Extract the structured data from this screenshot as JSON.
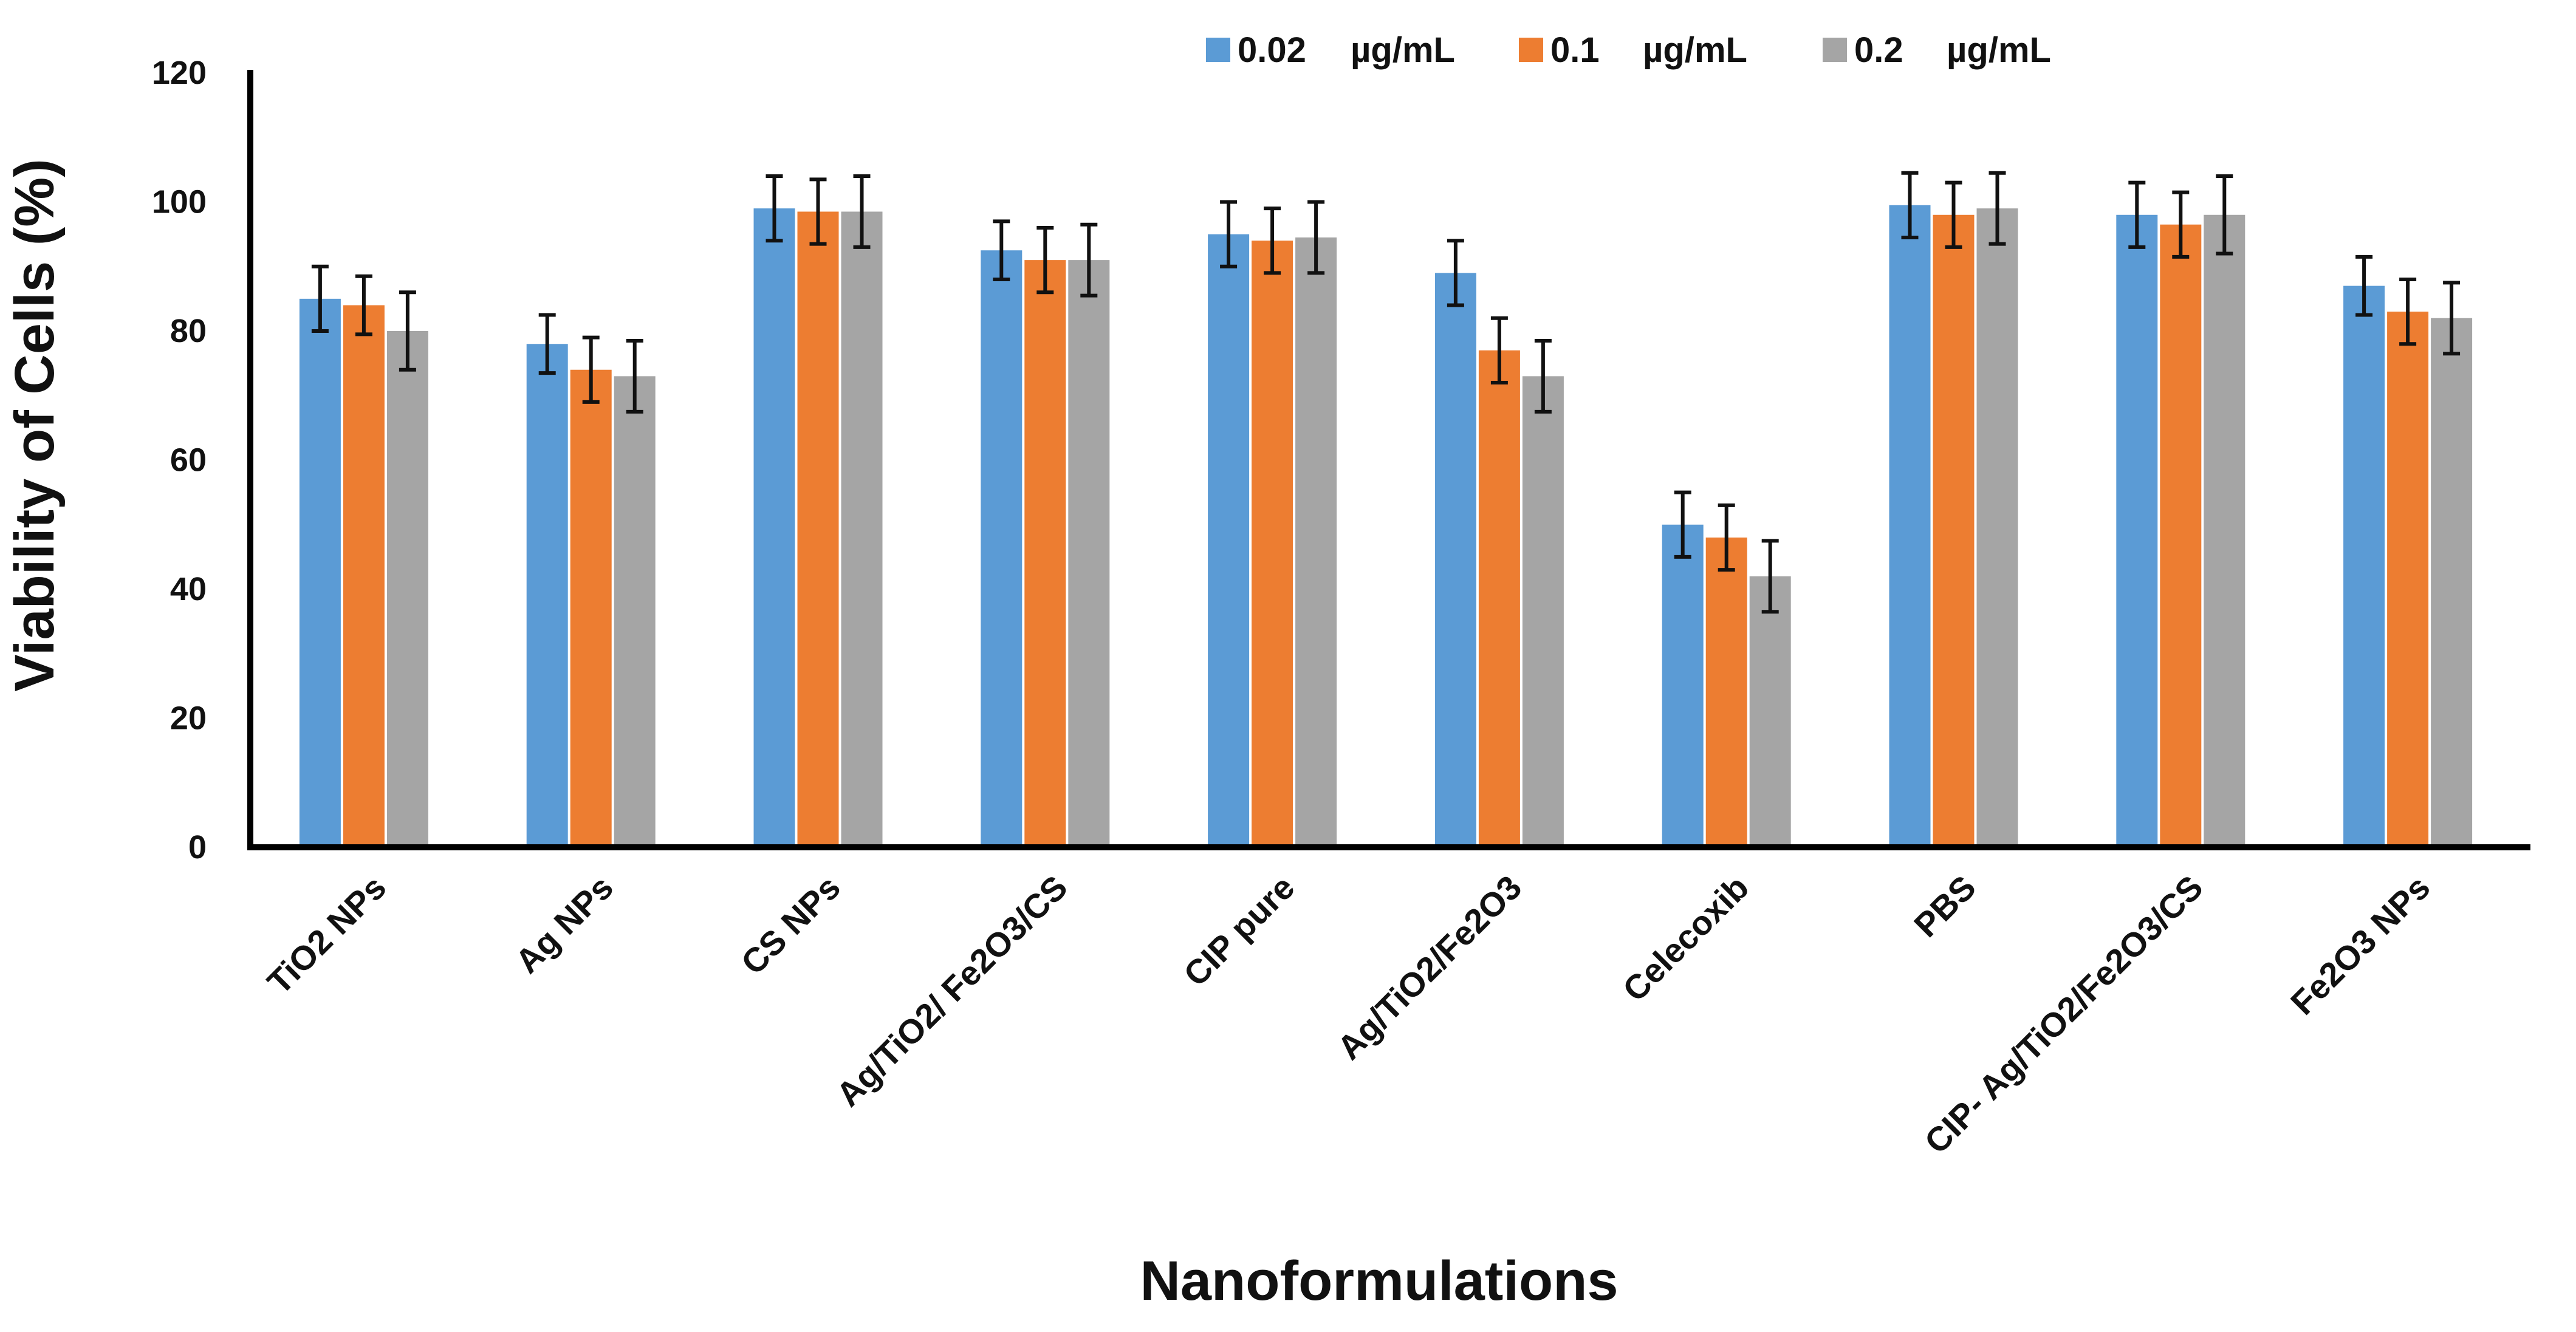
{
  "chart_data": {
    "type": "bar",
    "title": "",
    "xlabel": "Nanoformulations",
    "ylabel": "Viability of Cells (%)",
    "ylim": [
      0,
      120
    ],
    "yticks": [
      "0",
      "20",
      "40",
      "60",
      "80",
      "100",
      "120"
    ],
    "yticks_values": [
      0,
      20,
      40,
      60,
      80,
      100,
      120
    ],
    "grid": false,
    "legend_position": "top-right",
    "categories": [
      "TiO2 NPs",
      "Ag NPs",
      "CS NPs",
      "Ag/TiO2/ Fe2O3/CS",
      "CIP pure",
      "Ag/TiO2/Fe2O3",
      "Celecoxib",
      "PBS",
      "CIP- Ag/TiO2/Fe2O3/CS",
      "Fe2O3 NPs"
    ],
    "series": [
      {
        "name": "0.02",
        "unit": "µg/mL",
        "color": "#5b9bd5",
        "values": [
          85,
          78,
          99,
          92.5,
          95,
          89,
          50,
          99.5,
          98,
          87
        ],
        "errors": [
          5,
          4.5,
          5,
          4.5,
          5,
          5,
          5,
          5,
          5,
          4.5
        ]
      },
      {
        "name": "0.1",
        "unit": "µg/mL",
        "color": "#ed7d31",
        "values": [
          84,
          74,
          98.5,
          91,
          94,
          77,
          48,
          98,
          96.5,
          83
        ],
        "errors": [
          4.5,
          5,
          5,
          5,
          5,
          5,
          5,
          5,
          5,
          5
        ]
      },
      {
        "name": "0.2",
        "unit": "µg/mL",
        "color": "#a5a5a5",
        "values": [
          80,
          73,
          98.5,
          91,
          94.5,
          73,
          42,
          99,
          98,
          82
        ],
        "errors": [
          6,
          5.5,
          5.5,
          5.5,
          5.5,
          5.5,
          5.5,
          5.5,
          6,
          5.5
        ]
      }
    ]
  }
}
